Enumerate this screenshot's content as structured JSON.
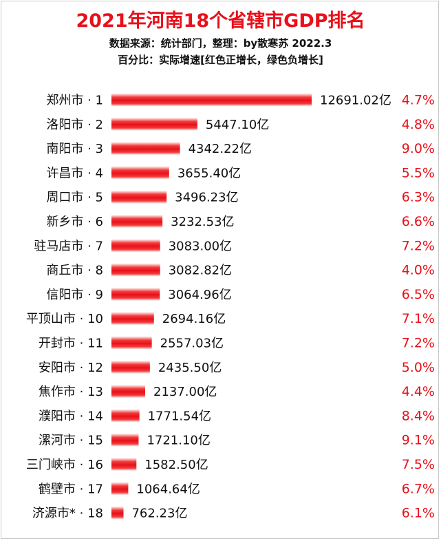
{
  "header": {
    "title": "2021年河南18个省辖市GDP排名",
    "source_line": "数据来源：统计部门，整理：by散寒苏  2022.3",
    "note_line": "百分比：实际增速[红色正增长，绿色负增长]"
  },
  "colors": {
    "title": "#e8101a",
    "bar": "#e8101a",
    "growth_positive": "#e8101a",
    "growth_negative": "#1a9a2a",
    "text": "#111111"
  },
  "chart_data": {
    "type": "bar",
    "orientation": "horizontal",
    "value_unit": "亿",
    "categories": [
      "郑州市 · 1",
      "洛阳市 · 2",
      "南阳市 · 3",
      "许昌市 · 4",
      "周口市 · 5",
      "新乡市 · 6",
      "驻马店市 · 7",
      "商丘市 · 8",
      "信阳市 · 9",
      "平顶山市 · 10",
      "开封市 · 11",
      "安阳市 · 12",
      "焦作市 · 13",
      "濮阳市 · 14",
      "漯河市 · 15",
      "三门峡市 · 16",
      "鹤壁市 · 17",
      "济源市* · 18"
    ],
    "values": [
      12691.02,
      5447.1,
      4342.22,
      3655.4,
      3496.23,
      3232.53,
      3083.0,
      3082.82,
      3064.96,
      2694.16,
      2557.03,
      2435.5,
      2137.0,
      1771.54,
      1721.1,
      1582.5,
      1064.64,
      762.23
    ],
    "value_labels": [
      "12691.02亿",
      "5447.10亿",
      "4342.22亿",
      "3655.40亿",
      "3496.23亿",
      "3232.53亿",
      "3083.00亿",
      "3082.82亿",
      "3064.96亿",
      "2694.16亿",
      "2557.03亿",
      "2435.50亿",
      "2137.00亿",
      "1771.54亿",
      "1721.10亿",
      "1582.50亿",
      "1064.64亿",
      "762.23亿"
    ],
    "growth": [
      4.7,
      4.8,
      9.0,
      5.5,
      6.3,
      6.6,
      7.2,
      4.0,
      6.5,
      7.1,
      7.2,
      5.0,
      4.4,
      8.4,
      9.1,
      7.5,
      6.7,
      6.1
    ],
    "growth_labels": [
      "4.7%",
      "4.8%",
      "9.0%",
      "5.5%",
      "6.3%",
      "6.6%",
      "7.2%",
      "4.0%",
      "6.5%",
      "7.1%",
      "7.2%",
      "5.0%",
      "4.4%",
      "8.4%",
      "9.1%",
      "7.5%",
      "6.7%",
      "6.1%"
    ],
    "grid": false,
    "legend": "none"
  }
}
